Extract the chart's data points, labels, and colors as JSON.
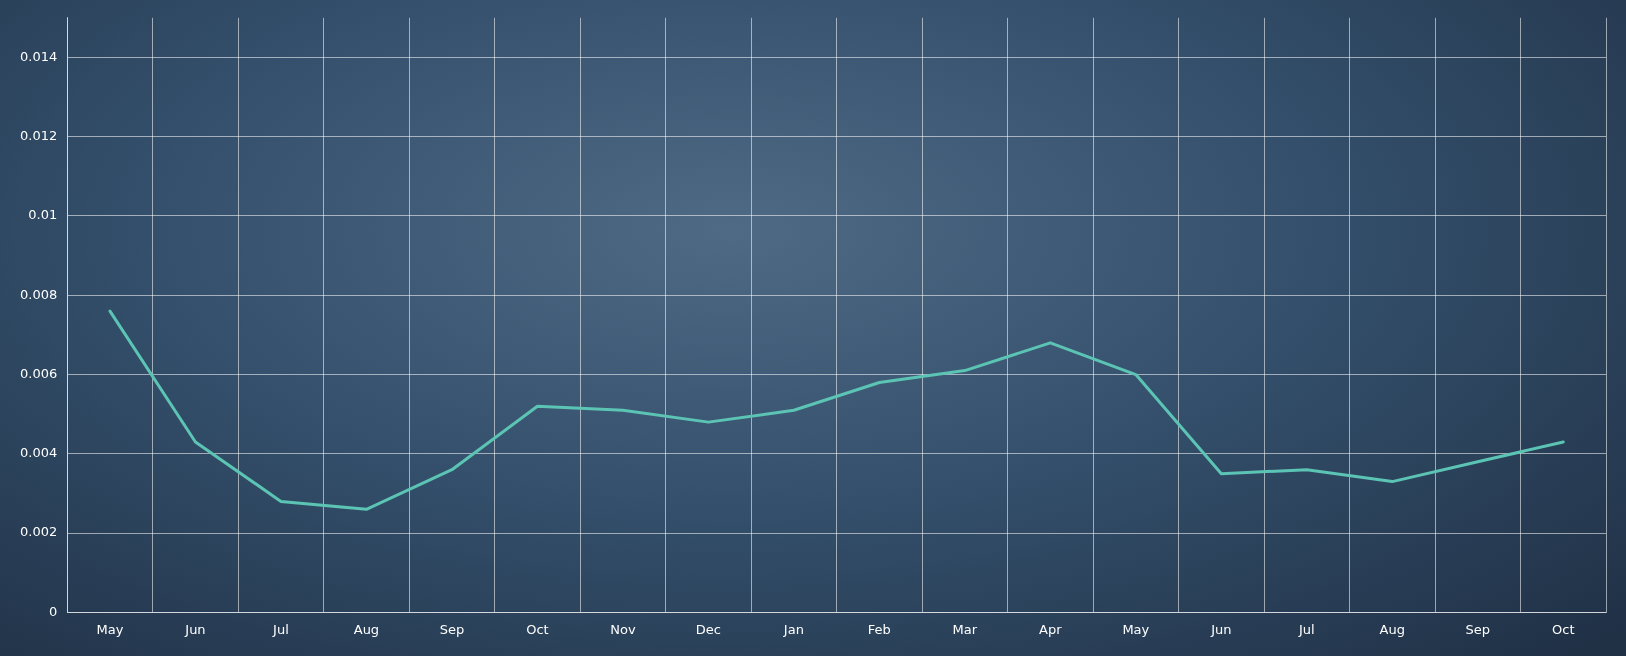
{
  "chart_data": {
    "type": "line",
    "categories": [
      "May",
      "Jun",
      "Jul",
      "Aug",
      "Sep",
      "Oct",
      "Nov",
      "Dec",
      "Jan",
      "Feb",
      "Mar",
      "Apr",
      "May",
      "Jun",
      "Jul",
      "Aug",
      "Sep",
      "Oct"
    ],
    "series": [
      {
        "color": "#5cc4b4",
        "values": [
          0.0076,
          0.0043,
          0.0028,
          0.0026,
          0.0036,
          0.0052,
          0.0051,
          0.0048,
          0.0051,
          0.0058,
          0.0061,
          0.0068,
          0.006,
          0.0035,
          0.0036,
          0.0033,
          0.0038,
          0.0043
        ]
      }
    ],
    "ylim": [
      0,
      0.015
    ],
    "yticks": [
      0,
      0.002,
      0.004,
      0.006,
      0.008,
      0.01,
      0.012,
      0.014
    ],
    "grid": true,
    "legend": false,
    "marker": "none",
    "line_style": "solid"
  }
}
